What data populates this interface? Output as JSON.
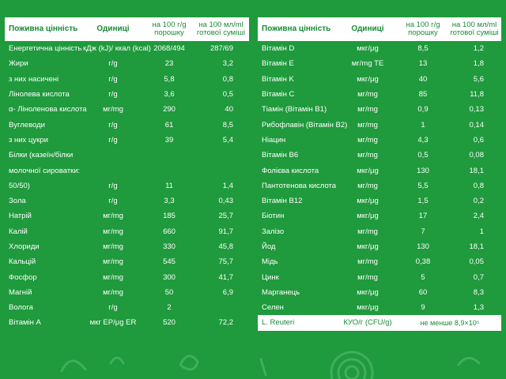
{
  "colors": {
    "background": "#1f9a3c",
    "header_bg": "#ffffff",
    "header_text": "#1a8a35",
    "text": "#ffffff"
  },
  "left_table": {
    "headers": [
      "Поживна цінність",
      "Одиниці",
      "на 100 г/g порошку",
      "на 100 мл/ml готової суміші"
    ],
    "rows": [
      [
        "Енергетична цінність",
        "кДж (kJ)/ ккал (kcal)",
        "2068/494",
        "287/69"
      ],
      [
        "Жири",
        "г/g",
        "23",
        "3,2"
      ],
      [
        "з них насичені",
        "г/g",
        "5,8",
        "0,8"
      ],
      [
        "Лінолева кислота",
        "г/g",
        "3,6",
        "0,5"
      ],
      [
        "α- Ліноленова кислота",
        "мг/mg",
        "290",
        "40"
      ],
      [
        "Вуглеводи",
        "г/g",
        "61",
        "8,5"
      ],
      [
        "з них цукри",
        "г/g",
        "39",
        "5,4"
      ],
      [
        "Білки (казеїн/білки",
        "",
        "",
        ""
      ],
      [
        "молочної сироватки:",
        "",
        "",
        ""
      ],
      [
        "50/50)",
        "г/g",
        "11",
        "1,4"
      ],
      [
        "Зола",
        "г/g",
        "3,3",
        "0,43"
      ],
      [
        "Натрій",
        "мг/mg",
        "185",
        "25,7"
      ],
      [
        "Калій",
        "мг/mg",
        "660",
        "91,7"
      ],
      [
        "Хлориди",
        "мг/mg",
        "330",
        "45,8"
      ],
      [
        "Кальцій",
        "мг/mg",
        "545",
        "75,7"
      ],
      [
        "Фосфор",
        "мг/mg",
        "300",
        "41,7"
      ],
      [
        "Магній",
        "мг/mg",
        "50",
        "6,9"
      ],
      [
        "Волога",
        "г/g",
        "2",
        ""
      ],
      [
        "Вітамін A",
        "мкг ЕР/μg ER",
        "520",
        "72,2"
      ]
    ]
  },
  "right_table": {
    "headers": [
      "Поживна цінність",
      "Одиниці",
      "на 100 г/g порошку",
      "на 100 мл/ml готової суміші"
    ],
    "rows": [
      [
        "Вітамін D",
        "мкг/μg",
        "8,5",
        "1,2"
      ],
      [
        "Вітамін E",
        "мг/mg TE",
        "13",
        "1,8"
      ],
      [
        "Вітамін K",
        "мкг/μg",
        "40",
        "5,6"
      ],
      [
        "Вітамін C",
        "мг/mg",
        "85",
        "11,8"
      ],
      [
        "Тіамін (Вітамін B1)",
        "мг/mg",
        "0,9",
        "0,13"
      ],
      [
        "Рибофлавін (Вітамін B2)",
        "мг/mg",
        "1",
        "0,14"
      ],
      [
        "Ніацин",
        "мг/mg",
        "4,3",
        "0,6"
      ],
      [
        "Вітамін B6",
        "мг/mg",
        "0,5",
        "0,08"
      ],
      [
        "Фолієва кислота",
        "мкг/μg",
        "130",
        "18,1"
      ],
      [
        "Пантотенова кислота",
        "мг/mg",
        "5,5",
        "0,8"
      ],
      [
        "Вітамін B12",
        "мкг/μg",
        "1,5",
        "0,2"
      ],
      [
        "Біотин",
        "мкг/μg",
        "17",
        "2,4"
      ],
      [
        "Залізо",
        "мг/mg",
        "7",
        "1"
      ],
      [
        "Йод",
        "мкг/μg",
        "130",
        "18,1"
      ],
      [
        "Мідь",
        "мг/mg",
        "0,38",
        "0,05"
      ],
      [
        "Цинк",
        "мг/mg",
        "5",
        "0,7"
      ],
      [
        "Марганець",
        "мкг/μg",
        "60",
        "8,3"
      ],
      [
        "Селен",
        "мкг/μg",
        "9",
        "1,3"
      ]
    ],
    "highlight_row": [
      "L. Reuteri",
      "КУО/г (CFU/g)",
      "не менше 8,9×10⁵"
    ]
  }
}
